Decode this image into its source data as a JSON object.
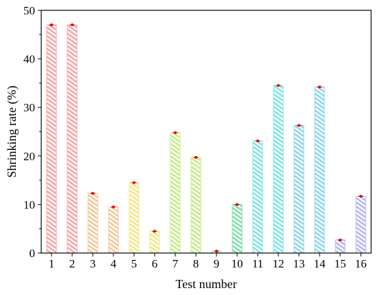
{
  "chart_data": {
    "type": "bar",
    "xlabel": "Test number",
    "ylabel": "Shrinking rate (%)",
    "ylim": [
      0,
      50
    ],
    "yticks": [
      0,
      10,
      20,
      30,
      40,
      50
    ],
    "categories": [
      "1",
      "2",
      "3",
      "4",
      "5",
      "6",
      "7",
      "8",
      "9",
      "10",
      "11",
      "12",
      "13",
      "14",
      "15",
      "16"
    ],
    "values": [
      47.0,
      47.0,
      12.3,
      9.5,
      14.5,
      4.5,
      24.8,
      19.7,
      0.4,
      10.0,
      23.1,
      34.5,
      26.3,
      34.2,
      2.7,
      11.7
    ],
    "error_marker_color": "#e00000",
    "bar_colors": [
      "#f7a6a6",
      "#f7a6a6",
      "#f3c896",
      "#f3c896",
      "#f0e88a",
      "#f0e88a",
      "#c5ec86",
      "#c5ec86",
      "#9fe8a2",
      "#7fe0a8",
      "#7fe6e2",
      "#7fe6e2",
      "#8fd6f0",
      "#8fd6f0",
      "#b6b6f2",
      "#b6b6f2"
    ],
    "grid": false
  }
}
